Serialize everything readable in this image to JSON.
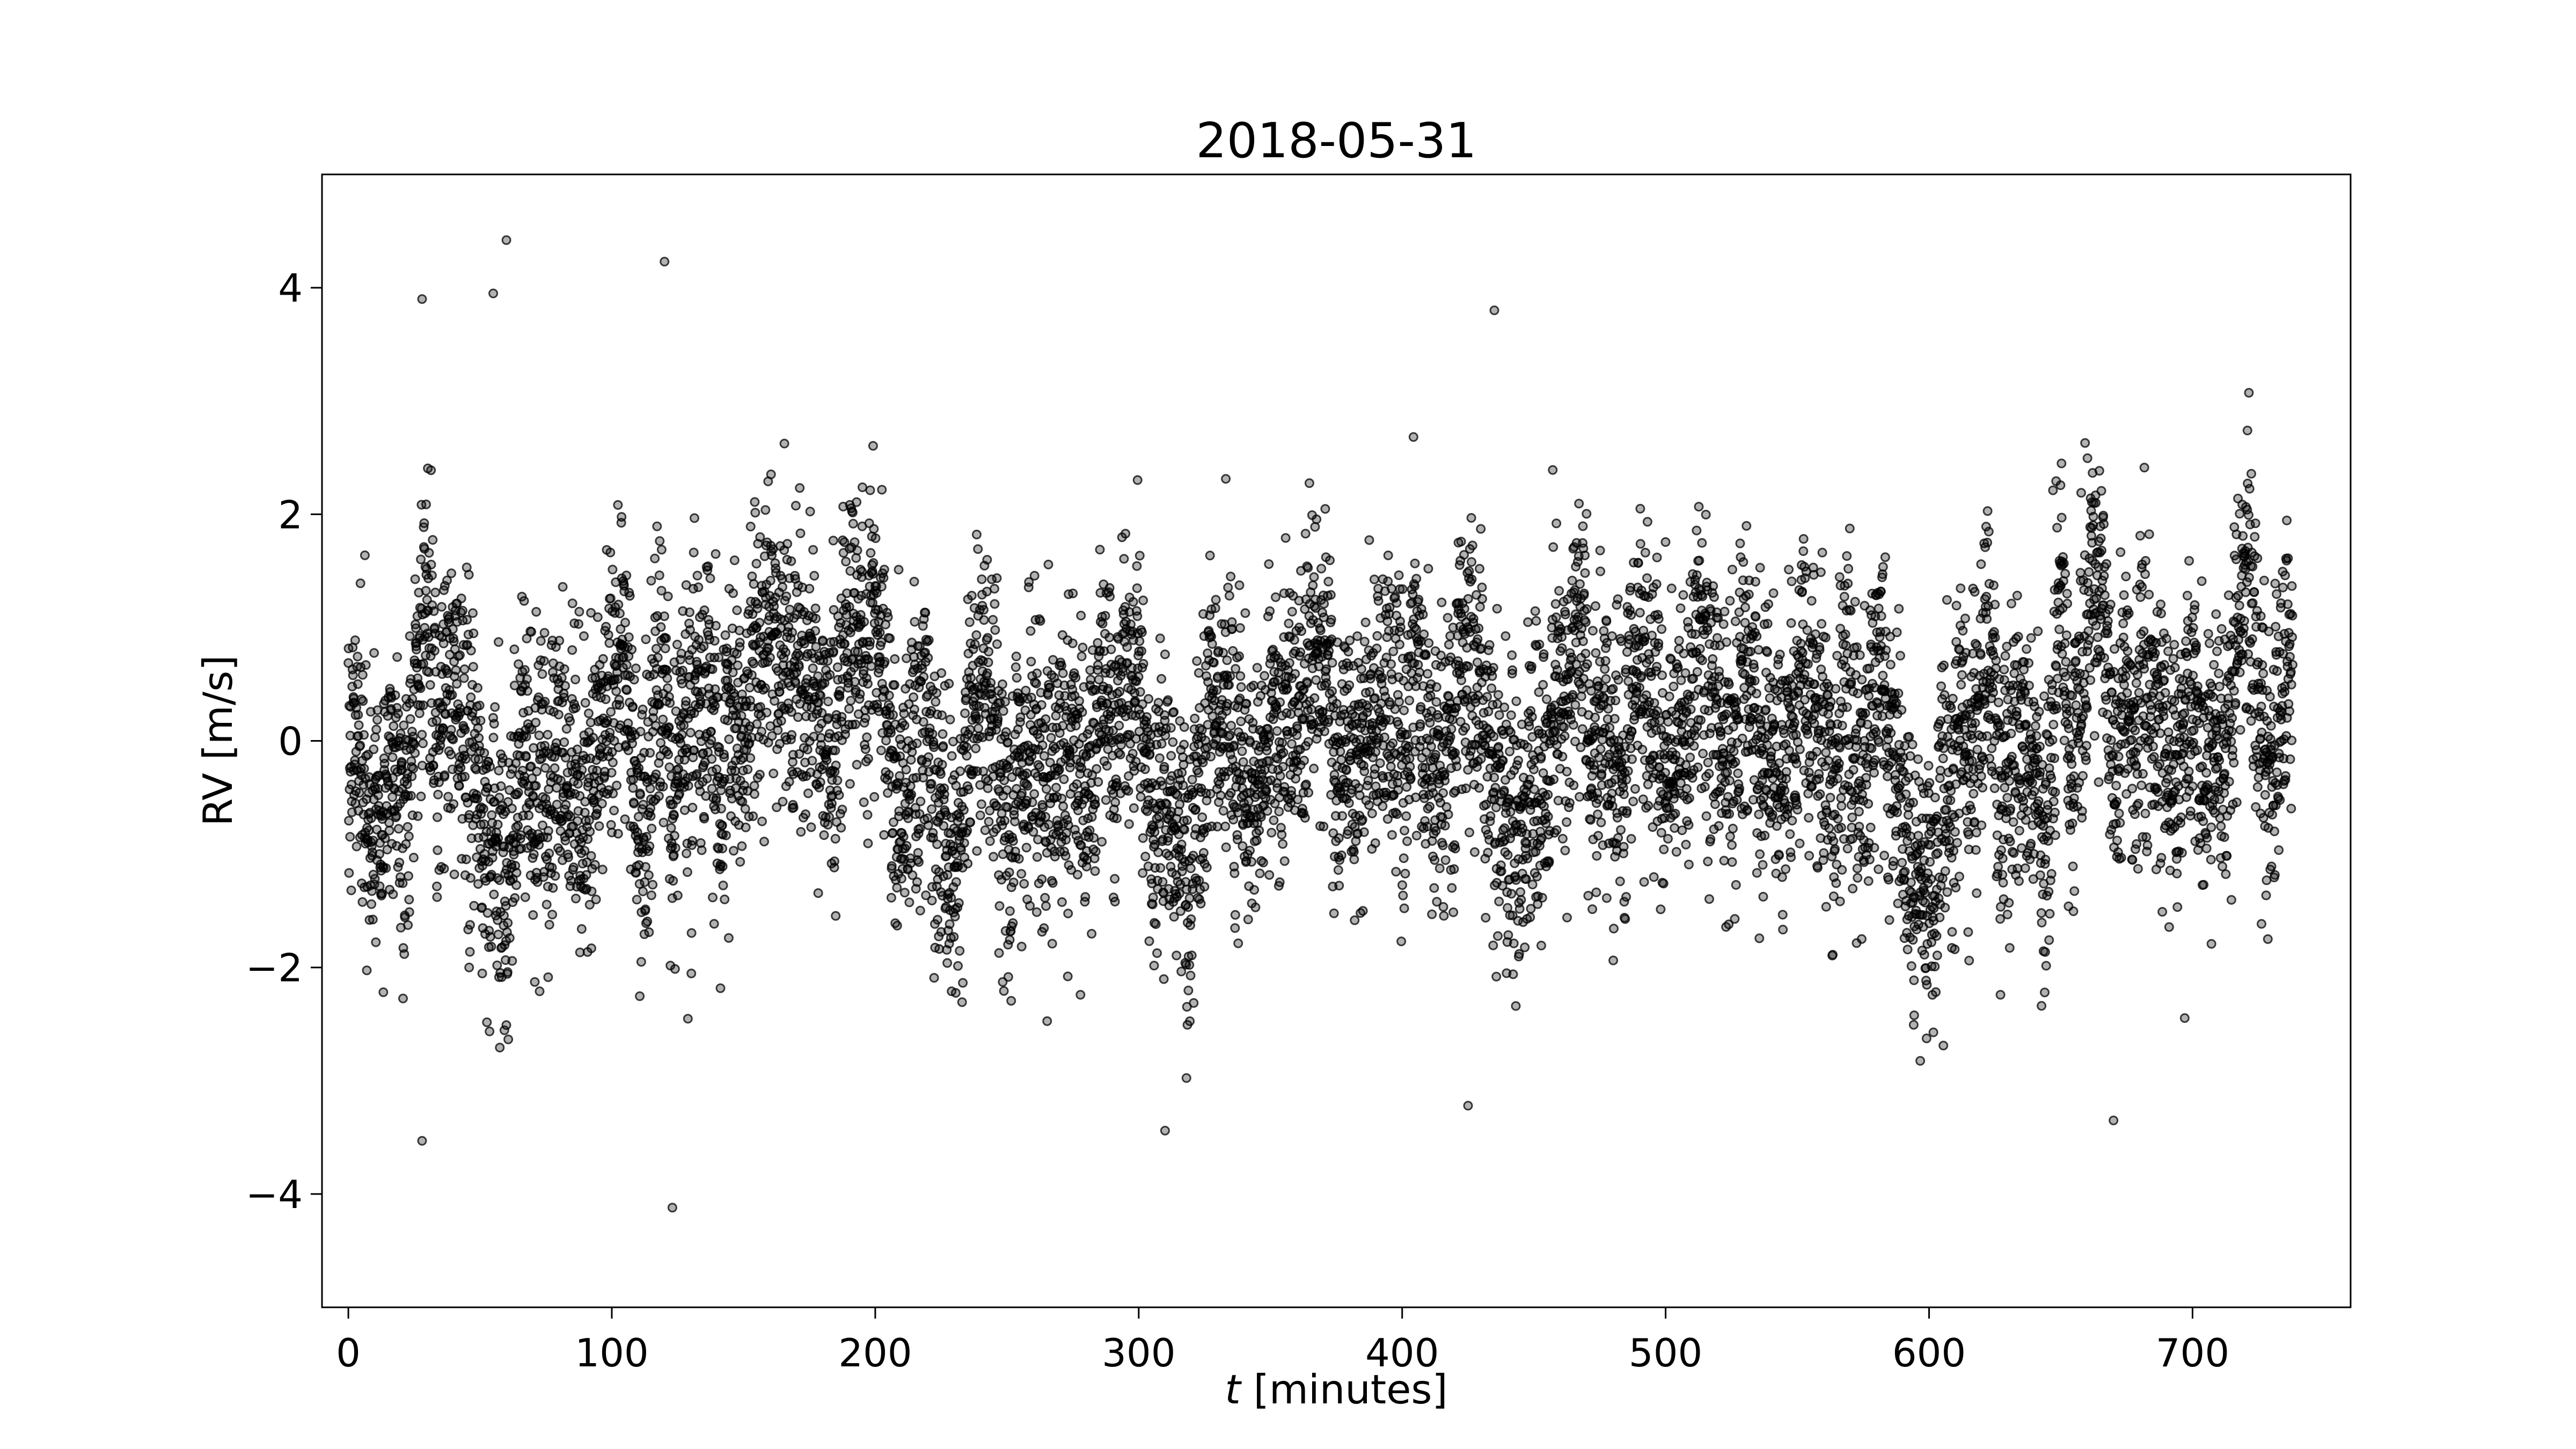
{
  "chart_data": {
    "type": "scatter",
    "title": "2018-05-31",
    "xlabel_var": "t",
    "xlabel_unit": " [minutes]",
    "ylabel": "RV [m/s]",
    "xlim": [
      -10,
      760
    ],
    "ylim": [
      -5,
      5
    ],
    "xticks": [
      0,
      100,
      200,
      300,
      400,
      500,
      600,
      700
    ],
    "xtick_labels": [
      "0",
      "100",
      "200",
      "300",
      "400",
      "500",
      "600",
      "700"
    ],
    "yticks": [
      -4,
      -2,
      0,
      2,
      4
    ],
    "ytick_labels": [
      "−4",
      "−2",
      "0",
      "2",
      "4"
    ],
    "grid": false,
    "legend": "none",
    "marker_color": "#000000",
    "marker_face_opacity": 0.3,
    "n_points_approx": 8000,
    "x_range": [
      0,
      738
    ],
    "sampling_interval_minutes": 0.09,
    "series_spread_std": 1.0,
    "highlighted_extremes": [
      {
        "x": 60,
        "y": 4.42
      },
      {
        "x": 120,
        "y": 4.23
      },
      {
        "x": 435,
        "y": 3.8
      },
      {
        "x": 55,
        "y": 3.95
      },
      {
        "x": 28,
        "y": 3.9
      },
      {
        "x": 123,
        "y": -4.12
      },
      {
        "x": 28,
        "y": -3.53
      },
      {
        "x": 310,
        "y": -3.44
      },
      {
        "x": 670,
        "y": -3.35
      },
      {
        "x": 425,
        "y": -3.22
      }
    ]
  }
}
